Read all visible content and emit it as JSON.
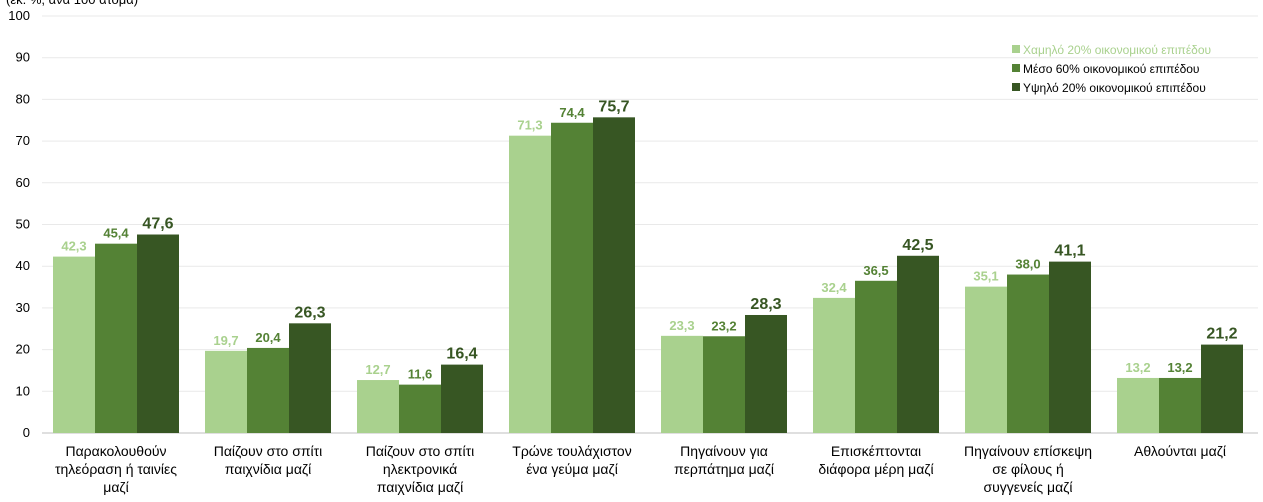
{
  "title": "(εκ. %, ανά 100 άτομα)",
  "colors": {
    "low": "#a9d18e",
    "mid": "#548235",
    "high": "#375623",
    "grid": "#e9e9e9",
    "axis": "#bfbfbf"
  },
  "chart_data": {
    "type": "bar",
    "categories": [
      "Παρακολουθούν τηλεόραση ή ταινίες μαζί",
      "Παίζουν στο σπίτι παιχνίδια μαζί",
      "Παίζουν στο σπίτι ηλεκτρονικά παιχνίδια μαζί",
      "Τρώνε τουλάχιστον ένα γεύμα μαζί",
      "Πηγαίνουν για περπάτημα μαζί",
      "Επισκέπτονται διάφορα μέρη μαζί",
      "Πηγαίνουν επίσκεψη σε φίλους ή συγγενείς μαζί",
      "Αθλούνται μαζί"
    ],
    "category_lines": [
      [
        "Παρακολουθούν",
        "τηλεόραση ή ταινίες",
        "μαζί"
      ],
      [
        "Παίζουν στο σπίτι",
        "παιχνίδια μαζί"
      ],
      [
        "Παίζουν στο σπίτι",
        "ηλεκτρονικά",
        "παιχνίδια μαζί"
      ],
      [
        "Τρώνε τουλάχιστον",
        "ένα γεύμα μαζί"
      ],
      [
        "Πηγαίνουν για",
        "περπάτημα μαζί"
      ],
      [
        "Επισκέπτονται",
        "διάφορα μέρη μαζί"
      ],
      [
        "Πηγαίνουν επίσκεψη",
        "σε φίλους ή",
        "συγγενείς μαζί"
      ],
      [
        "Αθλούνται μαζί"
      ]
    ],
    "series": [
      {
        "name": "Χαμηλό 20% οικονομικού επιπέδου",
        "color": "#a9d18e",
        "values": [
          42.3,
          19.7,
          12.7,
          71.3,
          23.3,
          32.4,
          35.1,
          13.2
        ],
        "labels": [
          "42,3",
          "19,7",
          "12,7",
          "71,3",
          "23,3",
          "32,4",
          "35,1",
          "13,2"
        ]
      },
      {
        "name": "Μέσο 60% οικονομικού επιπέδου",
        "color": "#548235",
        "values": [
          45.4,
          20.4,
          11.6,
          74.4,
          23.2,
          36.5,
          38.0,
          13.2
        ],
        "labels": [
          "45,4",
          "20,4",
          "11,6",
          "74,4",
          "23,2",
          "36,5",
          "38,0",
          "13,2"
        ]
      },
      {
        "name": "Υψηλό 20% οικονομικού επιπέδου",
        "color": "#375623",
        "values": [
          47.6,
          26.3,
          16.4,
          75.7,
          28.3,
          42.5,
          41.1,
          21.2
        ],
        "labels": [
          "47,6",
          "26,3",
          "16,4",
          "75,7",
          "28,3",
          "42,5",
          "41,1",
          "21,2"
        ]
      }
    ],
    "ylim": [
      0,
      100
    ],
    "yticks": [
      0,
      10,
      20,
      30,
      40,
      50,
      60,
      70,
      80,
      90,
      100
    ],
    "grid": true,
    "legend_position": "top-right"
  }
}
